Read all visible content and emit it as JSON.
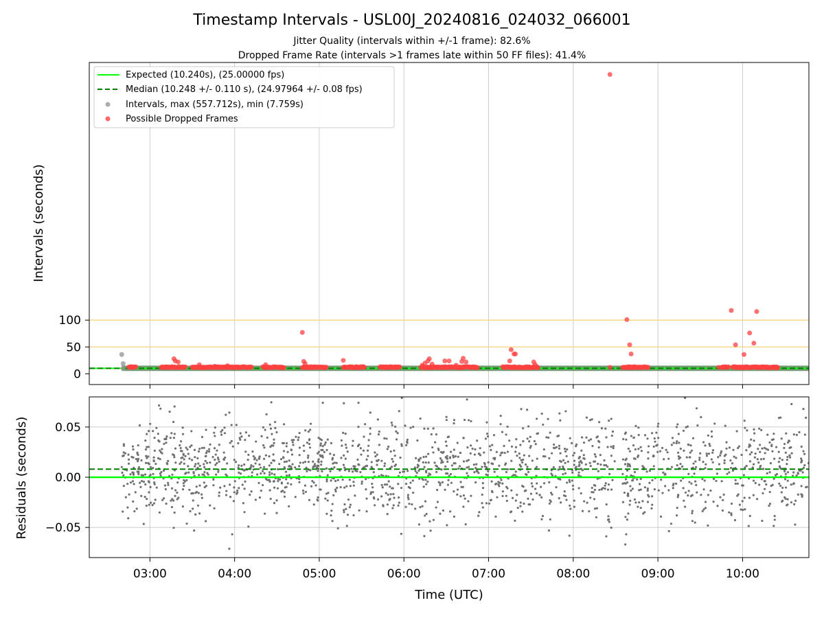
{
  "chart_data": [
    {
      "type": "scatter",
      "title": "Timestamp Intervals - USL00J_20240816_024032_066001",
      "subtitle_lines": [
        "Jitter Quality (intervals within +/-1 frame): 82.6%",
        "Dropped Frame Rate (intervals >1 frames late within 50 FF files): 41.4%"
      ],
      "xlabel": "",
      "ylabel": "Intervals (seconds)",
      "x_range": [
        "02:17",
        "10:47"
      ],
      "y_range": [
        -20,
        580
      ],
      "yticks": [
        0,
        50,
        100
      ],
      "reference_lines": [
        {
          "y": 50,
          "color": "#ffd27a"
        },
        {
          "y": 100,
          "color": "#ffd27a"
        }
      ],
      "legend": {
        "placement": "top-left",
        "entries": [
          "Expected (10.240s), (25.00000 fps)",
          "Median (10.248 +/- 0.110 s), (24.97964 +/- 0.08 fps)",
          "Intervals, max (557.712s), min (7.759s)",
          "Possible Dropped Frames"
        ]
      },
      "expected_interval": 10.24,
      "median_interval": 10.248,
      "intervals_max": 557.712,
      "intervals_min": 7.759,
      "band_range": [
        "02:40",
        "10:47"
      ],
      "band_halfwidth": 5,
      "normal_points": [
        {
          "x": "02:40",
          "y": 36
        },
        {
          "x": "02:41",
          "y": 19
        },
        {
          "x": "02:41",
          "y": 10
        }
      ],
      "dropped_clusters": [
        [
          "02:45",
          "02:50"
        ],
        [
          "03:08",
          "03:25"
        ],
        [
          "03:30",
          "04:12"
        ],
        [
          "04:20",
          "04:35"
        ],
        [
          "04:48",
          "05:05"
        ],
        [
          "05:17",
          "05:32"
        ],
        [
          "05:43",
          "05:57"
        ],
        [
          "06:12",
          "06:52"
        ],
        [
          "07:10",
          "07:35"
        ],
        [
          "08:35",
          "08:53"
        ],
        [
          "09:45",
          "09:50"
        ],
        [
          "09:53",
          "10:25"
        ]
      ],
      "dropped_points": [
        {
          "x": "03:17",
          "y": 28
        },
        {
          "x": "03:18",
          "y": 24
        },
        {
          "x": "03:20",
          "y": 22
        },
        {
          "x": "03:35",
          "y": 17
        },
        {
          "x": "03:46",
          "y": 14
        },
        {
          "x": "03:55",
          "y": 15
        },
        {
          "x": "04:22",
          "y": 17
        },
        {
          "x": "04:48",
          "y": 77
        },
        {
          "x": "04:49",
          "y": 23
        },
        {
          "x": "04:50",
          "y": 19
        },
        {
          "x": "05:17",
          "y": 25
        },
        {
          "x": "05:45",
          "y": 13
        },
        {
          "x": "06:13",
          "y": 16
        },
        {
          "x": "06:15",
          "y": 20
        },
        {
          "x": "06:17",
          "y": 24
        },
        {
          "x": "06:18",
          "y": 28
        },
        {
          "x": "06:20",
          "y": 18
        },
        {
          "x": "06:29",
          "y": 24
        },
        {
          "x": "06:32",
          "y": 24
        },
        {
          "x": "06:37",
          "y": 16
        },
        {
          "x": "06:41",
          "y": 23
        },
        {
          "x": "06:42",
          "y": 29
        },
        {
          "x": "06:44",
          "y": 22
        },
        {
          "x": "07:15",
          "y": 24
        },
        {
          "x": "07:16",
          "y": 45
        },
        {
          "x": "07:18",
          "y": 37
        },
        {
          "x": "07:19",
          "y": 37
        },
        {
          "x": "07:32",
          "y": 22
        },
        {
          "x": "07:33",
          "y": 17
        },
        {
          "x": "08:26",
          "y": 557.7
        },
        {
          "x": "08:26",
          "y": 12
        },
        {
          "x": "08:38",
          "y": 101
        },
        {
          "x": "08:40",
          "y": 54
        },
        {
          "x": "08:41",
          "y": 37
        },
        {
          "x": "09:43",
          "y": 12
        },
        {
          "x": "09:52",
          "y": 118
        },
        {
          "x": "09:55",
          "y": 54
        },
        {
          "x": "10:01",
          "y": 36
        },
        {
          "x": "10:05",
          "y": 76
        },
        {
          "x": "10:08",
          "y": 57
        },
        {
          "x": "10:10",
          "y": 116
        }
      ]
    },
    {
      "type": "scatter",
      "xlabel": "Time (UTC)",
      "ylabel": "Residuals (seconds)",
      "x_range": [
        "02:17",
        "10:47"
      ],
      "y_range": [
        -0.08,
        0.08
      ],
      "yticks": [
        -0.05,
        0.0,
        0.05
      ],
      "ytick_labels": [
        "−0.05",
        "0.00",
        "0.05"
      ],
      "xticks": [
        "03:00",
        "04:00",
        "05:00",
        "06:00",
        "07:00",
        "08:00",
        "09:00",
        "10:00"
      ],
      "expected_residual": 0.0,
      "median_residual": 0.008,
      "residual_coverage": [
        [
          "02:40",
          "08:30"
        ],
        [
          "08:35",
          "10:47"
        ]
      ],
      "residual_spread": 0.025,
      "residual_count": 1800
    }
  ],
  "colors": {
    "expected": "#00ff00",
    "median": "#007f00",
    "interval_point": "#999999",
    "dropped_point": "#ff4040",
    "band": "#5a8a5a",
    "residual_point": "#707070",
    "reference_line": "#ffd27a",
    "grid": "#cccccc"
  }
}
